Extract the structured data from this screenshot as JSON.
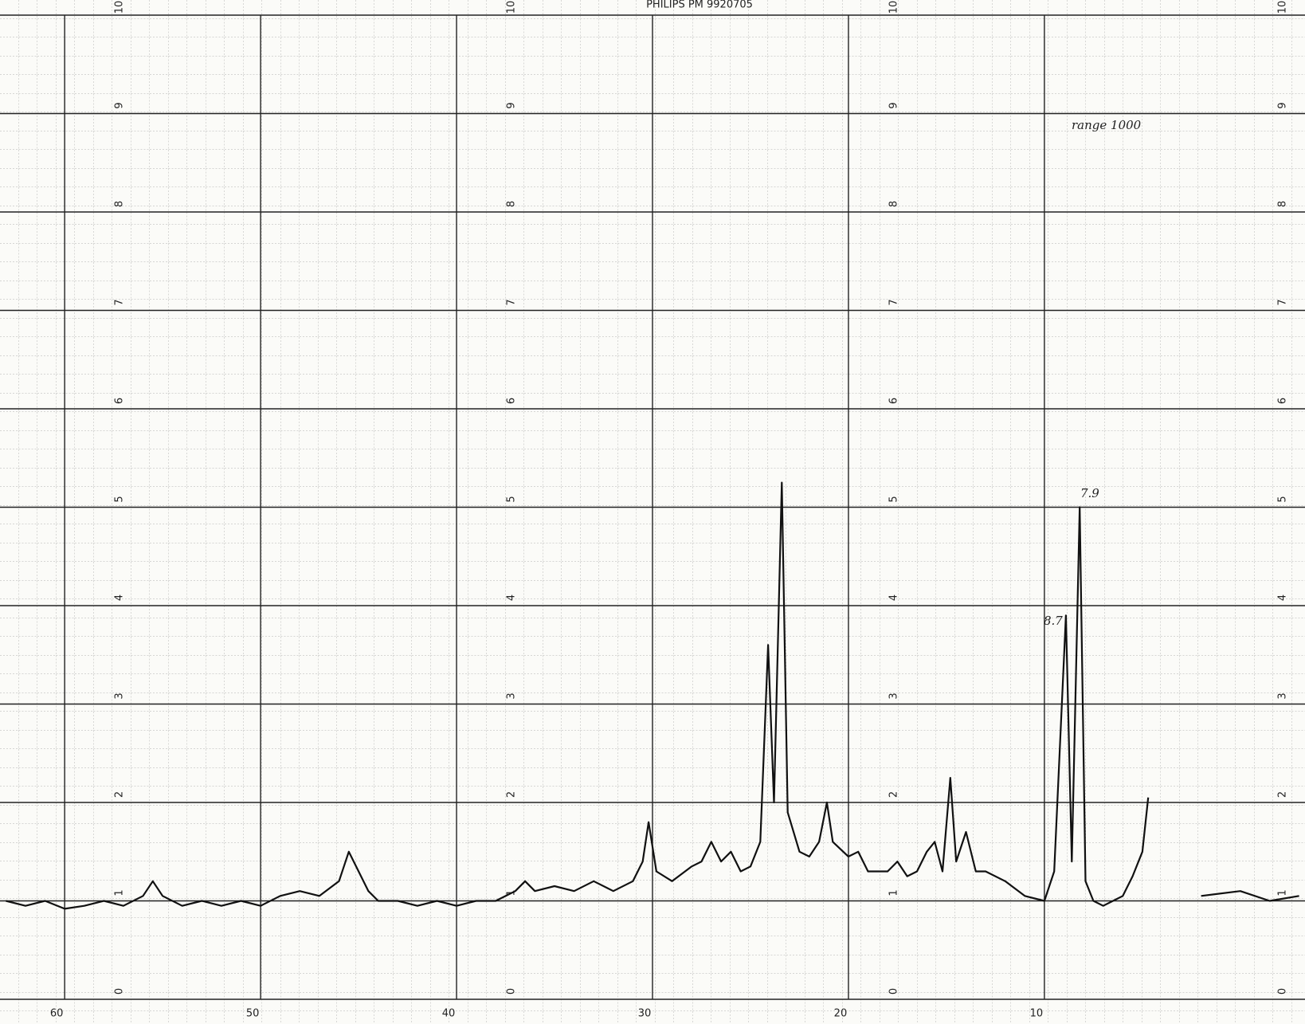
{
  "chart_data": {
    "type": "line",
    "title": "PHILIPS    PM 9920705",
    "annotations": [
      "7.9",
      "8.7",
      "range 1000"
    ],
    "x": [
      63,
      62,
      61,
      60,
      59,
      58,
      57,
      56,
      55.5,
      55,
      54,
      53,
      52,
      51,
      50,
      49,
      48,
      47,
      46,
      45.5,
      45,
      44.5,
      44,
      43,
      42,
      41,
      40,
      39,
      38,
      37,
      36.5,
      36,
      35,
      34,
      33,
      32,
      31,
      30.5,
      30.2,
      29.8,
      29,
      28,
      27.5,
      27,
      26.5,
      26,
      25.5,
      25,
      24.5,
      24.1,
      23.8,
      23.4,
      23.1,
      22.5,
      22,
      21.5,
      21.1,
      20.8,
      20,
      19.5,
      19,
      18,
      17.5,
      17,
      16.5,
      16,
      15.6,
      15.2,
      14.8,
      14.5,
      14,
      13.5,
      13,
      12,
      11,
      10,
      9.5,
      8.9,
      8.6,
      8.2,
      7.9,
      7.5,
      7,
      6,
      5.5,
      5,
      4.7,
      3.5,
      2,
      0,
      -1.5,
      -3
    ],
    "series": [
      {
        "color": "#111111",
        "values": [
          1.0,
          0.95,
          1.0,
          0.92,
          0.95,
          1.0,
          0.95,
          1.05,
          1.2,
          1.05,
          0.95,
          1.0,
          0.95,
          1.0,
          0.95,
          1.05,
          1.1,
          1.05,
          1.2,
          1.5,
          1.3,
          1.1,
          1.0,
          1.0,
          0.95,
          1.0,
          0.95,
          1.0,
          1.0,
          1.1,
          1.2,
          1.1,
          1.15,
          1.1,
          1.2,
          1.1,
          1.2,
          1.4,
          1.8,
          1.3,
          1.2,
          1.35,
          1.4,
          1.6,
          1.4,
          1.5,
          1.3,
          1.35,
          1.6,
          3.6,
          2.0,
          5.25,
          1.9,
          1.5,
          1.45,
          1.6,
          2.0,
          1.6,
          1.45,
          1.5,
          1.3,
          1.3,
          1.4,
          1.25,
          1.3,
          1.5,
          1.6,
          1.3,
          2.25,
          1.4,
          1.7,
          1.3,
          1.3,
          1.2,
          1.05,
          1.0,
          1.3,
          3.9,
          1.4,
          5.0,
          1.2,
          1.0,
          0.95,
          1.05,
          1.25,
          1.5,
          2.05,
          null,
          1.05,
          1.1,
          1.0,
          1.05
        ]
      }
    ],
    "xlim": [
      63.3,
      -3.3
    ],
    "ylim": [
      0,
      10
    ],
    "xticks": [
      60,
      50,
      40,
      30,
      20,
      10
    ],
    "yticks": [
      0,
      1,
      2,
      3,
      4,
      5,
      6,
      7,
      8,
      9,
      10
    ],
    "grid": true
  }
}
